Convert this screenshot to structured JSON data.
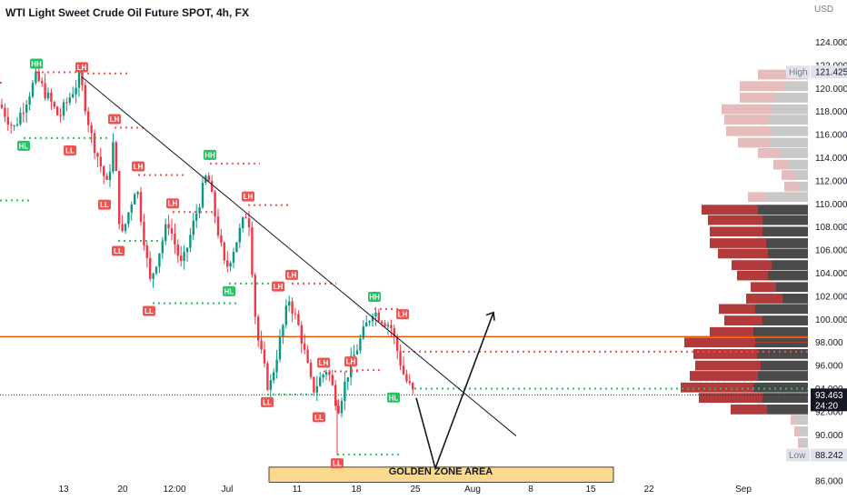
{
  "chart_data": {
    "type": "candlestick",
    "title": "WTI Light Sweet Crude Oil Future SPOT, 4h, FX",
    "currency": "USD",
    "y_range": [
      85.5,
      125
    ],
    "y_ticks": [
      124.0,
      122.0,
      120.0,
      118.0,
      116.0,
      114.0,
      112.0,
      110.0,
      108.0,
      106.0,
      104.0,
      102.0,
      100.0,
      98.0,
      96.0,
      94.0,
      92.0,
      90.0,
      88.0,
      86.0
    ],
    "x_ticks": [
      "13",
      "20",
      "12:00",
      "Jul",
      "11",
      "18",
      "25",
      "Aug",
      "8",
      "15",
      "22",
      "Sep"
    ],
    "price_badges": [
      {
        "label": "High",
        "value": "121.425",
        "price": 121.425
      },
      {
        "label": "Low",
        "value": "88.242",
        "price": 88.242
      }
    ],
    "last_price": {
      "value": "93.463",
      "countdown": "24:20",
      "price": 93.463
    },
    "horizontal_line": {
      "price": 98.5,
      "color": "#e65100"
    },
    "trendline": {
      "from_price": 121.0,
      "to_price": 89.9
    },
    "golden_zone": {
      "label": "GOLDEN ZONE AREA",
      "price_top": 87.2,
      "price_bottom": 85.9,
      "color": "#fbd98d"
    },
    "projection": {
      "start_price": 93.2,
      "low_price": 87.1,
      "target_price": 100.6
    },
    "structure_labels": [
      {
        "text": "HH",
        "kind": "high",
        "price": 121.4
      },
      {
        "text": "LH",
        "kind": "high",
        "price": 121.1
      },
      {
        "text": "HL",
        "kind": "low",
        "price": 115.7
      },
      {
        "text": "LL",
        "kind": "low",
        "price": 115.3
      },
      {
        "text": "LH",
        "kind": "high",
        "price": 116.6
      },
      {
        "text": "LH",
        "kind": "high",
        "price": 112.5
      },
      {
        "text": "LL",
        "kind": "low",
        "price": 110.6
      },
      {
        "text": "LH",
        "kind": "high",
        "price": 109.3
      },
      {
        "text": "LL",
        "kind": "low",
        "price": 106.6
      },
      {
        "text": "HH",
        "kind": "high",
        "price": 113.5
      },
      {
        "text": "LH",
        "kind": "high",
        "price": 109.9
      },
      {
        "text": "LL",
        "kind": "low",
        "price": 101.4
      },
      {
        "text": "HL",
        "kind": "low",
        "price": 103.1
      },
      {
        "text": "LH",
        "kind": "high",
        "price": 103.1
      },
      {
        "text": "LH",
        "kind": "high",
        "price": 102.1
      },
      {
        "text": "LH",
        "kind": "high",
        "price": 95.5
      },
      {
        "text": "LH",
        "kind": "high",
        "price": 95.6
      },
      {
        "text": "LL",
        "kind": "low",
        "price": 93.5
      },
      {
        "text": "LL",
        "kind": "low",
        "price": 92.2
      },
      {
        "text": "HH",
        "kind": "high",
        "price": 101.2
      },
      {
        "text": "LH",
        "kind": "high",
        "price": 99.7
      },
      {
        "text": "HL",
        "kind": "low",
        "price": 93.9
      },
      {
        "text": "LL",
        "kind": "low",
        "price": 88.2
      }
    ],
    "volume_profile": "buy/sell volume by price, upper rows faded, lower rows highlighted",
    "colors": {
      "up": "#089981",
      "down": "#f23645",
      "profile_up": "#4a4a4a",
      "profile_down": "#b23a3a",
      "hh_hl": "#22c55e",
      "ll_lh": "#ef5350",
      "trendline": "#131722"
    }
  }
}
